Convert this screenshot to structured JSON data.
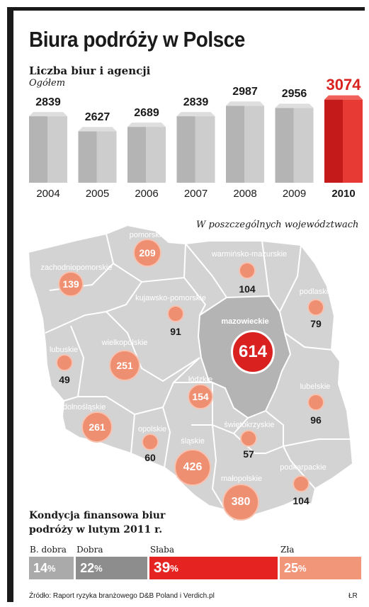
{
  "header": {
    "title": "Biura podróży w Polsce",
    "subtitle": "Liczba biur i agencji",
    "subsubtitle": "Ogółem"
  },
  "chart_data": [
    {
      "type": "bar",
      "title": "Liczba biur i agencji",
      "subtitle": "Ogółem",
      "categories": [
        "2004",
        "2005",
        "2006",
        "2007",
        "2008",
        "2009",
        "2010"
      ],
      "values": [
        2839,
        2627,
        2689,
        2839,
        2987,
        2956,
        3074
      ],
      "highlight": "2010",
      "colors": {
        "bar": "#b9b9b9",
        "highlight": "#d9221f"
      }
    },
    {
      "type": "map",
      "title": "W poszczególnych województwach",
      "regions": [
        {
          "name": "pomorskie",
          "value": 209
        },
        {
          "name": "zachodniopomorskie",
          "value": 139
        },
        {
          "name": "warmińsko-mazurskie",
          "value": 104
        },
        {
          "name": "kujawsko-pomorskie",
          "value": 91
        },
        {
          "name": "podlaskie",
          "value": 79
        },
        {
          "name": "mazowieckie",
          "value": 614
        },
        {
          "name": "lubuskie",
          "value": 49
        },
        {
          "name": "wielkopolskie",
          "value": 251
        },
        {
          "name": "łódzkie",
          "value": 154
        },
        {
          "name": "lubelskie",
          "value": 96
        },
        {
          "name": "dolnośląskie",
          "value": 261
        },
        {
          "name": "opolskie",
          "value": 60
        },
        {
          "name": "śląskie",
          "value": 426
        },
        {
          "name": "świętokrzyskie",
          "value": 57
        },
        {
          "name": "małopolskie",
          "value": 380
        },
        {
          "name": "podkarpackie",
          "value": 104
        }
      ],
      "colors": {
        "map": "#d3d3d3",
        "bubble": "#ef8f72",
        "highlight": "#d9221f"
      }
    },
    {
      "type": "stacked-bar",
      "title": "Kondycja finansowa biur podróży w lutym 2011 r.",
      "segments": [
        {
          "label": "B. dobra",
          "value": 14,
          "color": "#aaaaaa"
        },
        {
          "label": "Dobra",
          "value": 22,
          "color": "#8d8d8d"
        },
        {
          "label": "Słaba",
          "value": 39,
          "color": "#e52421"
        },
        {
          "label": "Zła",
          "value": 25,
          "color": "#f19679"
        }
      ],
      "unit": "%"
    }
  ],
  "condition": {
    "title_line1": "Kondycja finansowa biur",
    "title_line2": "podróży w lutym 2011 r."
  },
  "footer": {
    "source": "Źródło: Raport ryzyka branżowego D&B Poland i Verdich.pl",
    "author": "ŁR"
  }
}
